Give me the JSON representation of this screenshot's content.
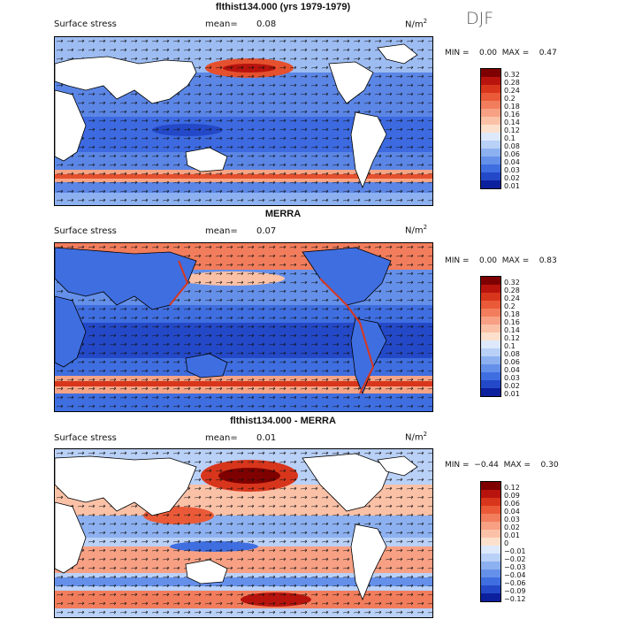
{
  "season": "DJF",
  "units_base": "N/m",
  "units_exp": "2",
  "panels": [
    {
      "title": "flthist134.000 (yrs 1979-1979)",
      "field_label": "Surface stress",
      "mean_label": "mean=",
      "mean_value": "0.08",
      "min_max": "MIN =    0.00  MAX =    0.47",
      "levels": [
        "0.32",
        "0.28",
        "0.24",
        "0.2",
        "0.18",
        "0.16",
        "0.14",
        "0.12",
        "0.1",
        "0.08",
        "0.06",
        "0.04",
        "0.03",
        "0.02",
        "0.01"
      ],
      "colors": [
        "#7f0000",
        "#b8140d",
        "#d8361c",
        "#ea5a38",
        "#f27d5c",
        "#f7a084",
        "#fbc1a7",
        "#fde0cc",
        "#dde9fb",
        "#b9d0f7",
        "#8db1f0",
        "#6590ea",
        "#3f6ee0",
        "#2449c8",
        "#0c1f9c"
      ]
    },
    {
      "title": "MERRA",
      "field_label": "Surface stress",
      "mean_label": "mean=",
      "mean_value": "0.07",
      "min_max": "MIN =    0.00  MAX =    0.83",
      "levels": [
        "0.32",
        "0.28",
        "0.24",
        "0.2",
        "0.18",
        "0.16",
        "0.14",
        "0.12",
        "0.1",
        "0.08",
        "0.06",
        "0.04",
        "0.03",
        "0.02",
        "0.01"
      ],
      "colors": [
        "#7f0000",
        "#b8140d",
        "#d8361c",
        "#ea5a38",
        "#f27d5c",
        "#f7a084",
        "#fbc1a7",
        "#fde0cc",
        "#dde9fb",
        "#b9d0f7",
        "#8db1f0",
        "#6590ea",
        "#3f6ee0",
        "#2449c8",
        "#0c1f9c"
      ]
    },
    {
      "title": "flthist134.000 - MERRA",
      "field_label": "Surface stress",
      "mean_label": "mean=",
      "mean_value": "0.01",
      "min_max": "MIN =  −0.44  MAX =    0.30",
      "levels": [
        "0.12",
        "0.09",
        "0.06",
        "0.04",
        "0.03",
        "0.02",
        "0.01",
        "0",
        "−0.01",
        "−0.02",
        "−0.03",
        "−0.04",
        "−0.06",
        "−0.09",
        "−0.12"
      ],
      "colors": [
        "#7f0000",
        "#b8140d",
        "#d8361c",
        "#ea5a38",
        "#f27d5c",
        "#f7a084",
        "#fbc1a7",
        "#fde0cc",
        "#dde9fb",
        "#b9d0f7",
        "#8db1f0",
        "#6590ea",
        "#3f6ee0",
        "#2449c8",
        "#0c1f9c"
      ]
    }
  ]
}
